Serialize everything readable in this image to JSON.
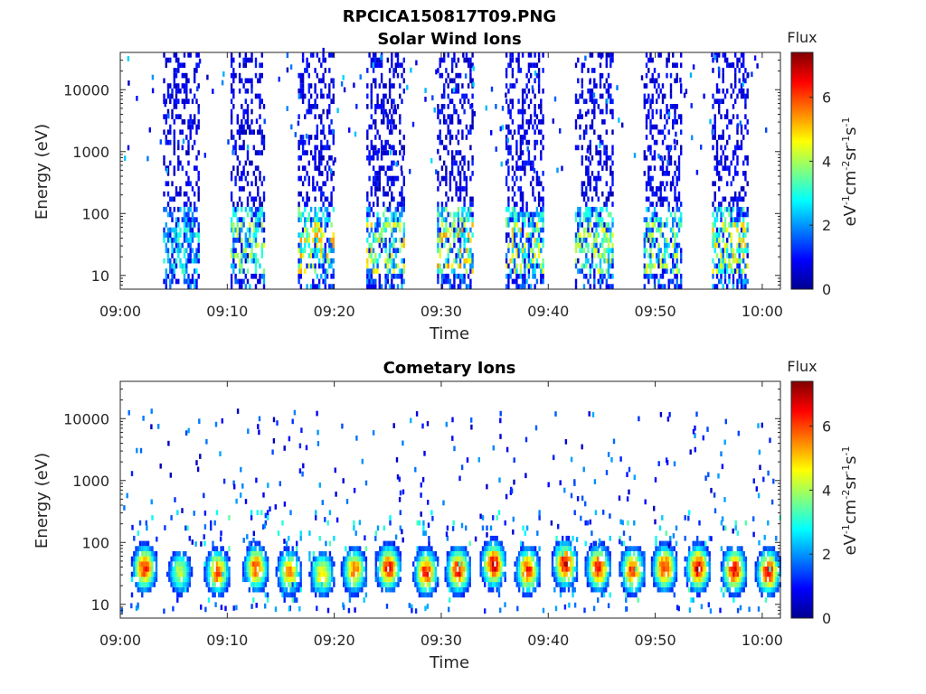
{
  "figure_title": "RPCICA150817T09.PNG",
  "chart_data": [
    {
      "type": "heatmap",
      "title": "Solar Wind Ions",
      "xlabel": "Time",
      "ylabel": "Energy (eV)",
      "x_ticks": [
        "09:00",
        "09:10",
        "09:20",
        "09:30",
        "09:40",
        "09:50",
        "10:00"
      ],
      "x_range_minutes": [
        0,
        61.7
      ],
      "y_scale": "log",
      "y_range": [
        6,
        40000
      ],
      "y_ticks": [
        10,
        100,
        1000,
        10000
      ],
      "y_tick_labels": [
        "10",
        "100",
        "1000",
        "10000"
      ],
      "colorbar": {
        "title": "Flux",
        "label": "eV-1cm-2sr-1s-1",
        "range": [
          0,
          7.4
        ],
        "ticks": [
          0,
          2,
          4,
          6
        ],
        "colormap": "jet"
      },
      "bursts": [
        {
          "start_min": 4.0,
          "end_min": 7.3,
          "low_energy_peak_flux": 2.8
        },
        {
          "start_min": 10.3,
          "end_min": 13.5,
          "low_energy_peak_flux": 4.0
        },
        {
          "start_min": 16.6,
          "end_min": 20.0,
          "low_energy_peak_flux": 4.8
        },
        {
          "start_min": 23.0,
          "end_min": 26.5,
          "low_energy_peak_flux": 4.5
        },
        {
          "start_min": 29.6,
          "end_min": 33.0,
          "low_energy_peak_flux": 5.0
        },
        {
          "start_min": 36.0,
          "end_min": 39.6,
          "low_energy_peak_flux": 4.6
        },
        {
          "start_min": 42.5,
          "end_min": 46.0,
          "low_energy_peak_flux": 4.3
        },
        {
          "start_min": 48.9,
          "end_min": 52.5,
          "low_energy_peak_flux": 4.2
        },
        {
          "start_min": 55.3,
          "end_min": 58.6,
          "low_energy_peak_flux": 4.6
        }
      ]
    },
    {
      "type": "heatmap",
      "title": "Cometary Ions",
      "xlabel": "Time",
      "ylabel": "Energy (eV)",
      "x_ticks": [
        "09:00",
        "09:10",
        "09:20",
        "09:30",
        "09:40",
        "09:50",
        "10:00"
      ],
      "x_range_minutes": [
        0,
        61.7
      ],
      "y_scale": "log",
      "y_range": [
        6,
        40000
      ],
      "y_ticks": [
        10,
        100,
        1000,
        10000
      ],
      "y_tick_labels": [
        "10",
        "100",
        "1000",
        "10000"
      ],
      "colorbar": {
        "title": "Flux",
        "label": "eV-1cm-2sr-1s-1",
        "range": [
          0,
          7.4
        ],
        "ticks": [
          0,
          2,
          4,
          6
        ],
        "colormap": "jet"
      },
      "bursts": [
        {
          "center_min": 2.2,
          "peak_energy_eV": 35,
          "peak_flux": 6.6
        },
        {
          "center_min": 5.5,
          "peak_energy_eV": 30,
          "peak_flux": 4.5
        },
        {
          "center_min": 9.0,
          "peak_energy_eV": 30,
          "peak_flux": 6.2
        },
        {
          "center_min": 12.6,
          "peak_energy_eV": 35,
          "peak_flux": 6.4
        },
        {
          "center_min": 15.7,
          "peak_energy_eV": 30,
          "peak_flux": 5.8
        },
        {
          "center_min": 18.8,
          "peak_energy_eV": 28,
          "peak_flux": 5.4
        },
        {
          "center_min": 21.8,
          "peak_energy_eV": 32,
          "peak_flux": 6.0
        },
        {
          "center_min": 25.0,
          "peak_energy_eV": 35,
          "peak_flux": 6.8
        },
        {
          "center_min": 28.5,
          "peak_energy_eV": 30,
          "peak_flux": 6.6
        },
        {
          "center_min": 31.5,
          "peak_energy_eV": 32,
          "peak_flux": 6.8
        },
        {
          "center_min": 34.8,
          "peak_energy_eV": 40,
          "peak_flux": 7.2
        },
        {
          "center_min": 38.0,
          "peak_energy_eV": 32,
          "peak_flux": 6.6
        },
        {
          "center_min": 41.5,
          "peak_energy_eV": 40,
          "peak_flux": 7.0
        },
        {
          "center_min": 44.6,
          "peak_energy_eV": 35,
          "peak_flux": 6.8
        },
        {
          "center_min": 47.8,
          "peak_energy_eV": 32,
          "peak_flux": 6.6
        },
        {
          "center_min": 50.8,
          "peak_energy_eV": 35,
          "peak_flux": 6.8
        },
        {
          "center_min": 53.9,
          "peak_energy_eV": 35,
          "peak_flux": 7.2
        },
        {
          "center_min": 57.3,
          "peak_energy_eV": 32,
          "peak_flux": 7.0
        },
        {
          "center_min": 60.5,
          "peak_energy_eV": 30,
          "peak_flux": 6.8
        }
      ]
    }
  ]
}
